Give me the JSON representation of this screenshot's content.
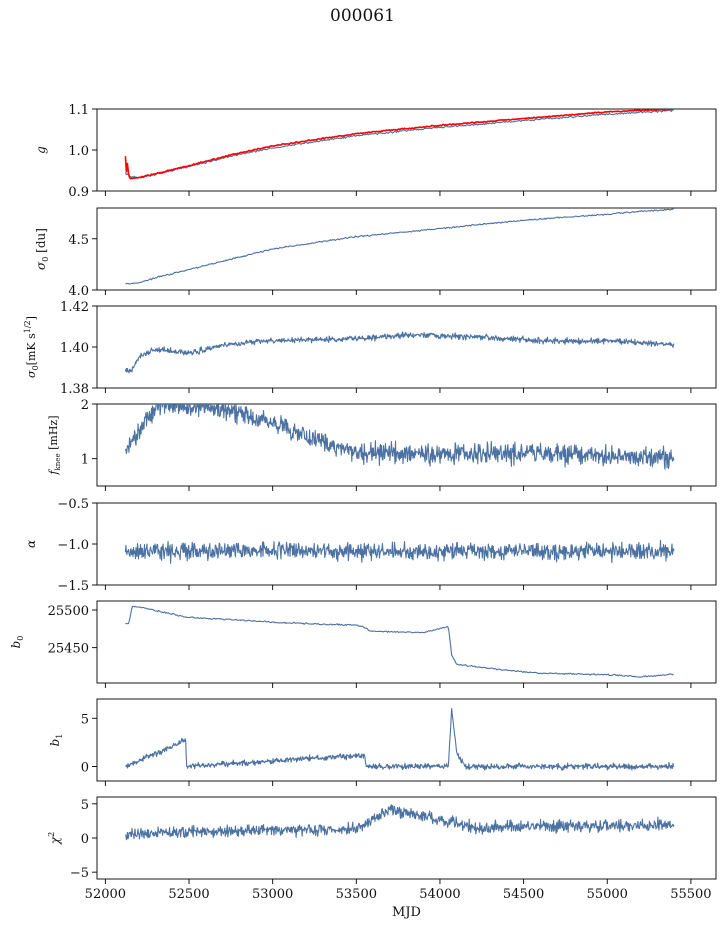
{
  "figure": {
    "title": "000061"
  },
  "colors": {
    "series": "#4c72a3",
    "overlay": "#ff0000",
    "axis": "#000000"
  },
  "chart_data": [
    {
      "type": "line",
      "ylabel": "g",
      "ylabel_html": "<i>g</i>",
      "ylim": [
        0.9,
        1.1
      ],
      "yticks": [
        0.9,
        1.0,
        1.1
      ],
      "yticklabels": [
        "0.9",
        "1.0",
        "1.1"
      ],
      "xlim": [
        51950,
        55650
      ],
      "series": [
        {
          "color": "#4c72a3",
          "x": [
            52120,
            52150,
            52200,
            52300,
            52500,
            52750,
            53000,
            53500,
            54000,
            54500,
            55000,
            55400
          ],
          "y": [
            0.945,
            0.935,
            0.932,
            0.94,
            0.96,
            0.985,
            1.005,
            1.035,
            1.055,
            1.072,
            1.087,
            1.097
          ]
        },
        {
          "color": "#ff0000",
          "x": [
            52120,
            52125,
            52130,
            52140,
            52150,
            52200,
            52300,
            52500,
            52750,
            53000,
            53500,
            54000,
            54500,
            55000,
            55400
          ],
          "y": [
            0.985,
            0.94,
            0.975,
            0.935,
            0.93,
            0.933,
            0.942,
            0.962,
            0.988,
            1.01,
            1.04,
            1.06,
            1.077,
            1.093,
            1.1
          ]
        }
      ]
    },
    {
      "type": "line",
      "ylabel": "σ0 [du]",
      "ylabel_html": "<i>σ</i><tspan font-size='9' dy='3'>0</tspan><tspan dy='-3'> [du]</tspan>",
      "ylim": [
        4.0,
        4.8
      ],
      "yticks": [
        4.0,
        4.5
      ],
      "yticklabels": [
        "4.0",
        "4.5"
      ],
      "xlim": [
        51950,
        55650
      ],
      "series": [
        {
          "color": "#4c72a3",
          "x": [
            52120,
            52200,
            52300,
            52500,
            52750,
            53000,
            53500,
            54000,
            54500,
            55000,
            55400
          ],
          "y": [
            4.06,
            4.07,
            4.12,
            4.2,
            4.3,
            4.4,
            4.52,
            4.6,
            4.68,
            4.74,
            4.79
          ]
        }
      ]
    },
    {
      "type": "line",
      "ylabel": "σ0[mK s^1/2]",
      "ylim": [
        1.38,
        1.42
      ],
      "yticks": [
        1.38,
        1.4,
        1.42
      ],
      "yticklabels": [
        "1.38",
        "1.40",
        "1.42"
      ],
      "xlim": [
        51950,
        55650
      ],
      "series": [
        {
          "color": "#4c72a3",
          "x": [
            52120,
            52150,
            52200,
            52300,
            52500,
            52700,
            53000,
            53500,
            53800,
            54200,
            54600,
            55000,
            55400
          ],
          "y": [
            1.389,
            1.388,
            1.395,
            1.399,
            1.397,
            1.401,
            1.403,
            1.404,
            1.406,
            1.405,
            1.403,
            1.403,
            1.401
          ]
        }
      ]
    },
    {
      "type": "line",
      "ylabel": "f_knee [mHz]",
      "ylim": [
        0.5,
        2.0
      ],
      "yticks": [
        1,
        2
      ],
      "yticklabels": [
        "1",
        "2"
      ],
      "xlim": [
        51950,
        55650
      ],
      "series": [
        {
          "color": "#4c72a3",
          "x": [
            52120,
            52320,
            52750,
            53500,
            54500,
            55400
          ],
          "y": [
            1.15,
            2.0,
            1.9,
            1.1,
            1.1,
            1.0
          ]
        }
      ]
    },
    {
      "type": "line",
      "ylabel": "α",
      "ylim": [
        -1.5,
        -0.5
      ],
      "yticks": [
        -1.5,
        -1.0,
        -0.5
      ],
      "yticklabels": [
        "−1.5",
        "−1.0",
        "−0.5"
      ],
      "xlim": [
        51950,
        55650
      ],
      "series": [
        {
          "color": "#4c72a3",
          "x": [
            52120,
            52800,
            53500,
            54200,
            55400
          ],
          "y": [
            -1.1,
            -1.08,
            -1.1,
            -1.09,
            -1.08
          ]
        }
      ]
    },
    {
      "type": "line",
      "ylabel": "b0",
      "ylim": [
        25403,
        25512
      ],
      "yticks": [
        25450,
        25500
      ],
      "yticklabels": [
        "25450",
        "25500"
      ],
      "xlim": [
        51950,
        55650
      ],
      "series": [
        {
          "color": "#4c72a3",
          "x": [
            52120,
            52140,
            52160,
            52200,
            52500,
            52700,
            53000,
            53300,
            53500,
            53560,
            53580,
            53900,
            54050,
            54070,
            54100,
            54200,
            54400,
            54600,
            55000,
            55200,
            55400
          ],
          "y": [
            25482,
            25482,
            25505,
            25504,
            25490,
            25488,
            25484,
            25481,
            25480,
            25476,
            25472,
            25470,
            25478,
            25440,
            25428,
            25425,
            25420,
            25416,
            25414,
            25411,
            25415
          ]
        }
      ]
    },
    {
      "type": "line",
      "ylabel": "b1",
      "ylim": [
        -1.5,
        7.0
      ],
      "yticks": [
        0,
        5
      ],
      "yticklabels": [
        "0",
        "5"
      ],
      "xlim": [
        51950,
        55650
      ],
      "series": [
        {
          "color": "#4c72a3",
          "x": [
            52120,
            52480,
            52485,
            53550,
            53560,
            54050,
            54070,
            54100,
            54150,
            55400
          ],
          "y": [
            0.0,
            2.7,
            0.0,
            1.2,
            0.0,
            0.0,
            6.0,
            1.5,
            0.0,
            0.0
          ]
        }
      ]
    },
    {
      "type": "line",
      "ylabel": "χ2",
      "ylim": [
        -6,
        6
      ],
      "yticks": [
        -5,
        0,
        5
      ],
      "yticklabels": [
        "−5",
        "0",
        "5"
      ],
      "xlim": [
        51950,
        55650
      ],
      "xlabel": "MJD",
      "xticks": [
        52000,
        52500,
        53000,
        53500,
        54000,
        54500,
        55000,
        55500
      ],
      "xticklabels": [
        "52000",
        "52500",
        "53000",
        "53500",
        "54000",
        "54500",
        "55000",
        "55500"
      ],
      "series": [
        {
          "color": "#4c72a3",
          "x": [
            52120,
            52800,
            53500,
            53700,
            54200,
            54800,
            55400
          ],
          "y": [
            0.5,
            1.2,
            1.3,
            4.2,
            1.6,
            1.8,
            1.9
          ]
        }
      ]
    }
  ]
}
